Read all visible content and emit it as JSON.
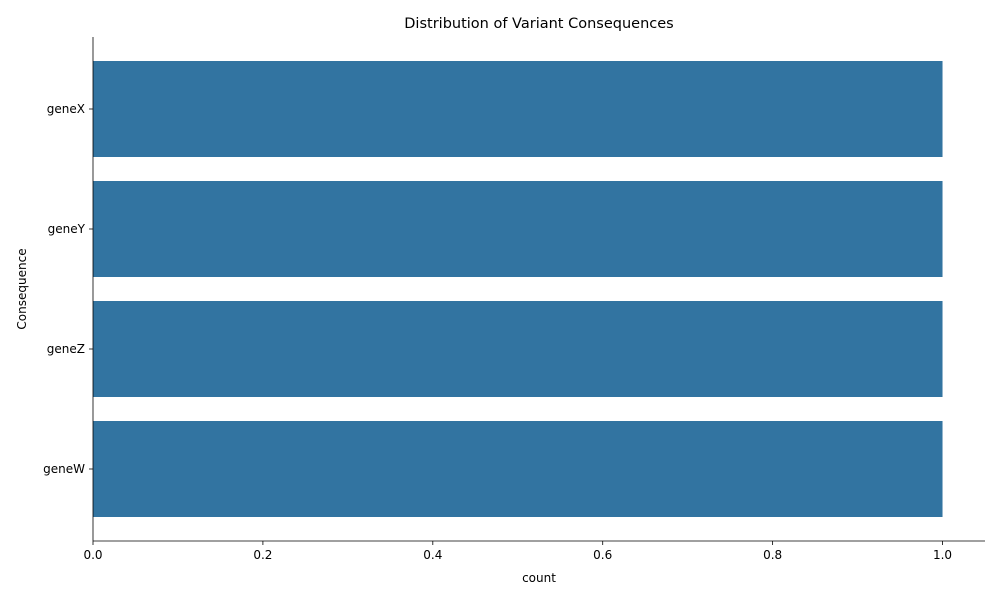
{
  "chart_data": {
    "type": "bar",
    "orientation": "horizontal",
    "title": "Distribution of Variant Consequences",
    "xlabel": "count",
    "ylabel": "Consequence",
    "categories": [
      "geneX",
      "geneY",
      "geneZ",
      "geneW"
    ],
    "values": [
      1,
      1,
      1,
      1
    ],
    "xlim": [
      0,
      1.05
    ],
    "xticks": [
      "0.0",
      "0.2",
      "0.4",
      "0.6",
      "0.8",
      "1.0"
    ],
    "grid": false,
    "legend": "none",
    "bar_color": "#3274a1"
  }
}
